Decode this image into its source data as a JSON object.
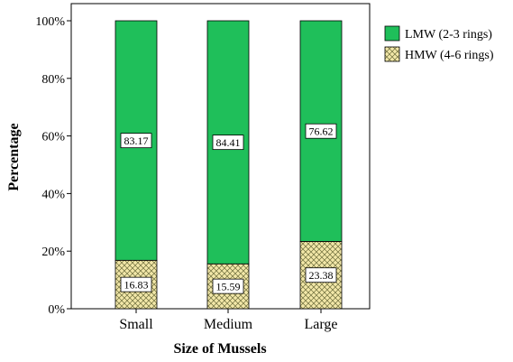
{
  "colors": {
    "lmw_fill": "#1fbf5a",
    "hmw_fill": "#f2e7a8",
    "hmw_pattern": "#6b6b3a",
    "axis": "#000000",
    "frame": "#000000"
  },
  "chart_data": {
    "type": "bar",
    "stacked": "percent",
    "title": "",
    "xlabel": "Size of Mussels",
    "ylabel": "Percentage",
    "ylim": [
      0,
      100
    ],
    "yticks": [
      "0%",
      "20%",
      "40%",
      "60%",
      "80%",
      "100%"
    ],
    "categories": [
      "Small",
      "Medium",
      "Large"
    ],
    "series": [
      {
        "name": "HMW (4-6 rings)",
        "values": [
          16.83,
          15.59,
          23.38
        ],
        "labels": [
          "16.83",
          "15.59",
          "23.38"
        ],
        "pattern": "dotted-crosshatch"
      },
      {
        "name": "LMW (2-3 rings)",
        "values": [
          83.17,
          84.41,
          76.62
        ],
        "labels": [
          "83.17",
          "84.41",
          "76.62"
        ],
        "pattern": "solid"
      }
    ],
    "legend": {
      "placement": "right",
      "entries": [
        "LMW (2-3 rings)",
        "HMW (4-6 rings)"
      ]
    },
    "grid": false
  }
}
